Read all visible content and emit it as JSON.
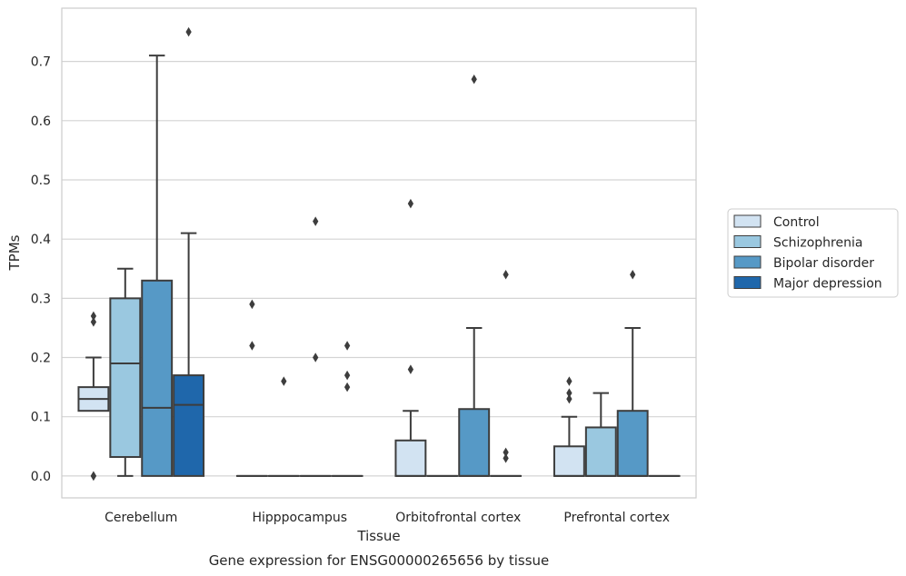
{
  "chart_data": {
    "type": "boxplot",
    "ylabel": "TPMs",
    "xlabel": "Tissue",
    "caption": "Gene expression for ENSG00000265656 by tissue",
    "ylim": [
      -0.037,
      0.79
    ],
    "yticks": [
      "0.0",
      "0.1",
      "0.2",
      "0.3",
      "0.4",
      "0.5",
      "0.6",
      "0.7"
    ],
    "grid": "horizontal",
    "legend_position": "right",
    "categories": [
      "Cerebellum",
      "Hipppocampus",
      "Orbitofrontal cortex",
      "Prefrontal cortex"
    ],
    "series": [
      {
        "name": "Control",
        "color": "#d2e3f2",
        "boxes": [
          {
            "q1": 0.11,
            "median": 0.13,
            "q3": 0.15,
            "whisker_low": 0.11,
            "whisker_high": 0.2,
            "outliers": [
              0.27,
              0.26,
              0.0,
              0.0
            ]
          },
          {
            "q1": 0.0,
            "median": 0.0,
            "q3": 0.0,
            "whisker_low": 0.0,
            "whisker_high": 0.0,
            "outliers": [
              0.29,
              0.22
            ]
          },
          {
            "q1": 0.0,
            "median": 0.0,
            "q3": 0.06,
            "whisker_low": 0.0,
            "whisker_high": 0.11,
            "outliers": [
              0.46,
              0.18
            ]
          },
          {
            "q1": 0.0,
            "median": 0.0,
            "q3": 0.05,
            "whisker_low": 0.0,
            "whisker_high": 0.1,
            "outliers": [
              0.16,
              0.14,
              0.13
            ]
          }
        ]
      },
      {
        "name": "Schizophrenia",
        "color": "#9ac8e0",
        "boxes": [
          {
            "q1": 0.032,
            "median": 0.19,
            "q3": 0.3,
            "whisker_low": 0.0,
            "whisker_high": 0.35,
            "outliers": []
          },
          {
            "q1": 0.0,
            "median": 0.0,
            "q3": 0.0,
            "whisker_low": 0.0,
            "whisker_high": 0.0,
            "outliers": [
              0.16
            ]
          },
          {
            "q1": 0.0,
            "median": 0.0,
            "q3": 0.0,
            "whisker_low": 0.0,
            "whisker_high": 0.0,
            "outliers": []
          },
          {
            "q1": 0.0,
            "median": 0.0,
            "q3": 0.082,
            "whisker_low": 0.0,
            "whisker_high": 0.14,
            "outliers": []
          }
        ]
      },
      {
        "name": "Bipolar disorder",
        "color": "#5699c6",
        "boxes": [
          {
            "q1": 0.0,
            "median": 0.115,
            "q3": 0.33,
            "whisker_low": 0.0,
            "whisker_high": 0.71,
            "outliers": []
          },
          {
            "q1": 0.0,
            "median": 0.0,
            "q3": 0.0,
            "whisker_low": 0.0,
            "whisker_high": 0.0,
            "outliers": [
              0.43,
              0.2
            ]
          },
          {
            "q1": 0.0,
            "median": 0.0,
            "q3": 0.113,
            "whisker_low": 0.0,
            "whisker_high": 0.25,
            "outliers": [
              0.67
            ]
          },
          {
            "q1": 0.0,
            "median": 0.0,
            "q3": 0.11,
            "whisker_low": 0.0,
            "whisker_high": 0.25,
            "outliers": [
              0.34
            ]
          }
        ]
      },
      {
        "name": "Major depression",
        "color": "#1f67ab",
        "boxes": [
          {
            "q1": 0.0,
            "median": 0.12,
            "q3": 0.17,
            "whisker_low": 0.0,
            "whisker_high": 0.41,
            "outliers": [
              0.75
            ]
          },
          {
            "q1": 0.0,
            "median": 0.0,
            "q3": 0.0,
            "whisker_low": 0.0,
            "whisker_high": 0.0,
            "outliers": [
              0.22,
              0.17,
              0.15
            ]
          },
          {
            "q1": 0.0,
            "median": 0.0,
            "q3": 0.0,
            "whisker_low": 0.0,
            "whisker_high": 0.0,
            "outliers": [
              0.34,
              0.04,
              0.03
            ]
          },
          {
            "q1": 0.0,
            "median": 0.0,
            "q3": 0.0,
            "whisker_low": 0.0,
            "whisker_high": 0.0,
            "outliers": []
          }
        ]
      }
    ]
  }
}
